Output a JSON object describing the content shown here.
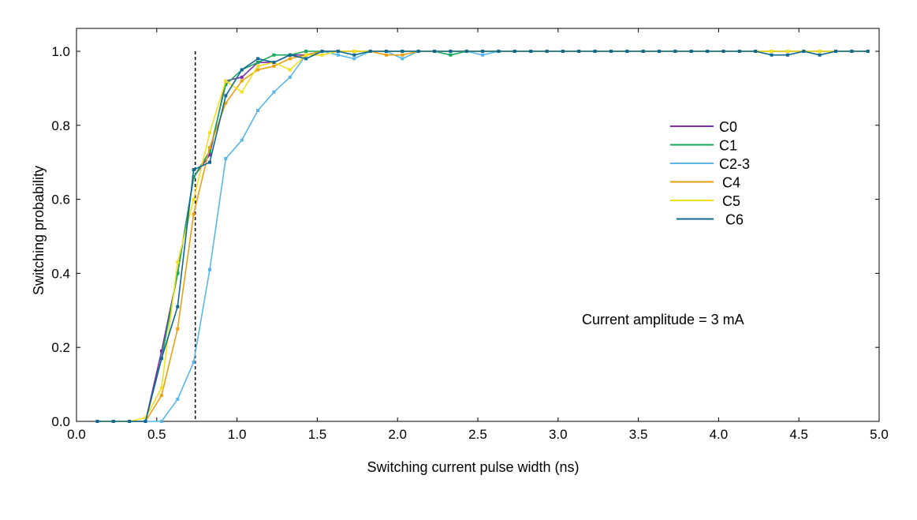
{
  "chart_data": {
    "type": "line",
    "xlabel": "Switching current pulse width (ns)",
    "ylabel": "Switching probability",
    "xlim": [
      0.0,
      5.0
    ],
    "ylim": [
      0.0,
      1.0
    ],
    "xticks": [
      "0.0",
      "0.5",
      "1.0",
      "1.5",
      "2.0",
      "2.5",
      "3.0",
      "3.5",
      "4.0",
      "4.5",
      "5.0"
    ],
    "yticks": [
      "0.0",
      "0.2",
      "0.4",
      "0.6",
      "0.8",
      "1.0"
    ],
    "grid": false,
    "legend_position": "right",
    "annotation": "Current amplitude = 3 mA",
    "reference_line": {
      "x": 0.74,
      "style": "dashed"
    },
    "x": [
      0.13,
      0.23,
      0.33,
      0.43,
      0.53,
      0.63,
      0.73,
      0.83,
      0.93,
      1.03,
      1.13,
      1.23,
      1.33,
      1.43,
      1.53,
      1.63,
      1.73,
      1.83,
      1.93,
      2.03,
      2.13,
      2.23,
      2.33,
      2.43,
      2.53,
      2.63,
      2.73,
      2.83,
      2.93,
      3.03,
      3.13,
      3.23,
      3.33,
      3.43,
      3.53,
      3.63,
      3.73,
      3.83,
      3.93,
      4.03,
      4.13,
      4.23,
      4.33,
      4.43,
      4.53,
      4.63,
      4.73,
      4.83,
      4.93
    ],
    "series": [
      {
        "name": "C0",
        "color": "#7b2fa8",
        "values": [
          0,
          0,
          0,
          0,
          0.19,
          0.4,
          0.66,
          0.72,
          0.92,
          0.93,
          0.97,
          0.97,
          0.99,
          0.99,
          1,
          1,
          1,
          1,
          1,
          1,
          1,
          1,
          1,
          1,
          1,
          1,
          1,
          1,
          1,
          1,
          1,
          1,
          1,
          1,
          1,
          1,
          1,
          1,
          1,
          1,
          1,
          1,
          1,
          1,
          1,
          1,
          1,
          1,
          1
        ]
      },
      {
        "name": "C1",
        "color": "#16a85a",
        "values": [
          0,
          0,
          0,
          0,
          0.17,
          0.4,
          0.66,
          0.73,
          0.91,
          0.95,
          0.97,
          0.99,
          0.99,
          1.0,
          1,
          1,
          1,
          1,
          1,
          1,
          1,
          1,
          0.99,
          1,
          1,
          1,
          1,
          1,
          1,
          1,
          1,
          1,
          1,
          1,
          1,
          1,
          1,
          1,
          1,
          1,
          1,
          1,
          1,
          1,
          1,
          1,
          1,
          1,
          1
        ]
      },
      {
        "name": "C2-3",
        "color": "#58b7e8",
        "values": [
          0,
          0,
          0,
          0,
          0,
          0.06,
          0.16,
          0.41,
          0.71,
          0.76,
          0.84,
          0.89,
          0.93,
          0.99,
          1.0,
          0.99,
          0.98,
          1,
          1,
          0.98,
          1,
          1,
          1,
          1,
          0.99,
          1,
          1,
          1,
          1,
          1,
          1,
          1,
          1,
          1,
          1,
          1,
          1,
          1,
          1,
          1,
          1,
          1,
          1,
          1,
          1,
          1,
          1,
          1,
          1
        ]
      },
      {
        "name": "C4",
        "color": "#eaa012",
        "values": [
          0,
          0,
          0,
          0,
          0.07,
          0.25,
          0.56,
          0.74,
          0.86,
          0.92,
          0.95,
          0.96,
          0.98,
          0.99,
          1.0,
          1,
          1,
          1,
          0.99,
          0.99,
          1,
          1,
          1,
          1,
          1,
          1,
          1,
          1,
          1,
          1,
          1,
          1,
          1,
          1,
          1,
          1,
          1,
          1,
          1,
          1,
          1,
          1,
          1,
          1,
          1,
          1,
          1,
          1,
          1
        ]
      },
      {
        "name": "C5",
        "color": "#f2e01c",
        "values": [
          0,
          0,
          0,
          0.01,
          0.09,
          0.43,
          0.6,
          0.78,
          0.92,
          0.89,
          0.96,
          0.97,
          0.95,
          0.99,
          0.99,
          1,
          1,
          1,
          1,
          1,
          1,
          1,
          1,
          1,
          1,
          1,
          1,
          1,
          1,
          1,
          1,
          1,
          1,
          1,
          1,
          1,
          1,
          1,
          1,
          1,
          1,
          1,
          1,
          1,
          1,
          1,
          1,
          1,
          1
        ]
      },
      {
        "name": "C6",
        "color": "#0f6a93",
        "values": [
          0,
          0,
          0,
          0,
          0.17,
          0.31,
          0.68,
          0.7,
          0.88,
          0.95,
          0.98,
          0.97,
          0.99,
          0.98,
          1,
          1,
          0.99,
          1,
          1,
          1,
          1,
          1,
          1,
          1,
          1,
          1,
          1,
          1,
          1,
          1,
          1,
          1,
          1,
          1,
          1,
          1,
          1,
          1,
          1,
          1,
          1,
          1,
          0.99,
          0.99,
          1,
          0.99,
          1,
          1,
          1
        ]
      }
    ]
  }
}
